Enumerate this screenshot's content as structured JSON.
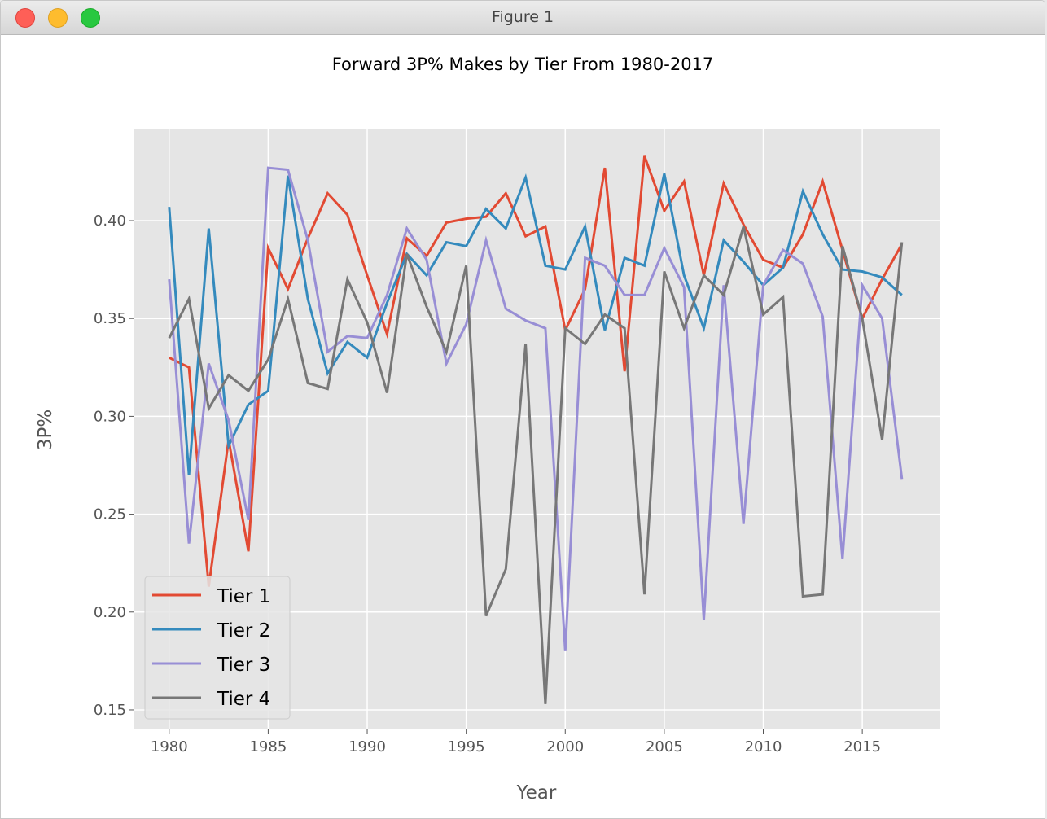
{
  "window": {
    "title": "Figure 1"
  },
  "chart_data": {
    "type": "line",
    "title": "Forward 3P% Makes by Tier From 1980-2017",
    "xlabel": "Year",
    "ylabel": "3P%",
    "xlim": [
      1978.2,
      2018.9
    ],
    "ylim": [
      0.14,
      0.4466
    ],
    "xticks": [
      1980,
      1985,
      1990,
      1995,
      2000,
      2005,
      2010,
      2015
    ],
    "xtick_labels": [
      "1980",
      "1985",
      "1990",
      "1995",
      "2000",
      "2005",
      "2010",
      "2015"
    ],
    "yticks": [
      0.15,
      0.2,
      0.25,
      0.3,
      0.35,
      0.4
    ],
    "ytick_labels": [
      "0.15",
      "0.20",
      "0.25",
      "0.30",
      "0.35",
      "0.40"
    ],
    "grid": true,
    "legend_position": "lower-left",
    "x": [
      1980,
      1981,
      1982,
      1983,
      1984,
      1985,
      1986,
      1987,
      1988,
      1989,
      1990,
      1991,
      1992,
      1993,
      1994,
      1995,
      1996,
      1997,
      1998,
      1999,
      2000,
      2001,
      2002,
      2003,
      2004,
      2005,
      2006,
      2007,
      2008,
      2009,
      2010,
      2011,
      2012,
      2013,
      2014,
      2015,
      2016,
      2017
    ],
    "series": [
      {
        "name": "Tier 1",
        "color": "#e24a33",
        "values": [
          0.33,
          0.325,
          0.213,
          0.288,
          0.231,
          0.386,
          0.365,
          0.391,
          0.414,
          0.403,
          0.372,
          0.342,
          0.391,
          0.382,
          0.399,
          0.401,
          0.402,
          0.414,
          0.392,
          0.397,
          0.344,
          0.365,
          0.427,
          0.323,
          0.433,
          0.405,
          0.42,
          0.372,
          0.419,
          0.398,
          0.38,
          0.376,
          0.393,
          0.42,
          0.385,
          0.35,
          0.37,
          0.388
        ]
      },
      {
        "name": "Tier 2",
        "color": "#348abd",
        "values": [
          0.407,
          0.27,
          0.396,
          0.285,
          0.306,
          0.313,
          0.423,
          0.36,
          0.322,
          0.338,
          0.33,
          0.358,
          0.383,
          0.372,
          0.389,
          0.387,
          0.406,
          0.396,
          0.422,
          0.377,
          0.375,
          0.397,
          0.344,
          0.381,
          0.377,
          0.424,
          0.372,
          0.345,
          0.39,
          0.379,
          0.367,
          0.376,
          0.415,
          0.393,
          0.375,
          0.374,
          0.371,
          0.362
        ]
      },
      {
        "name": "Tier 3",
        "color": "#988ed5",
        "values": [
          0.37,
          0.235,
          0.327,
          0.298,
          0.247,
          0.427,
          0.426,
          0.39,
          0.333,
          0.341,
          0.34,
          0.362,
          0.396,
          0.38,
          0.327,
          0.347,
          0.39,
          0.355,
          0.349,
          0.345,
          0.18,
          0.381,
          0.377,
          0.362,
          0.362,
          0.386,
          0.366,
          0.196,
          0.367,
          0.245,
          0.367,
          0.385,
          0.378,
          0.351,
          0.227,
          0.367,
          0.35,
          0.268
        ]
      },
      {
        "name": "Tier 4",
        "color": "#777777",
        "values": [
          0.34,
          0.36,
          0.304,
          0.321,
          0.313,
          0.329,
          0.36,
          0.317,
          0.314,
          0.37,
          0.348,
          0.312,
          0.383,
          0.356,
          0.333,
          0.377,
          0.198,
          0.222,
          0.337,
          0.153,
          0.345,
          0.337,
          0.352,
          0.345,
          0.209,
          0.374,
          0.345,
          0.372,
          0.362,
          0.397,
          0.352,
          0.361,
          0.208,
          0.209,
          0.387,
          0.35,
          0.288,
          0.389
        ]
      }
    ]
  }
}
